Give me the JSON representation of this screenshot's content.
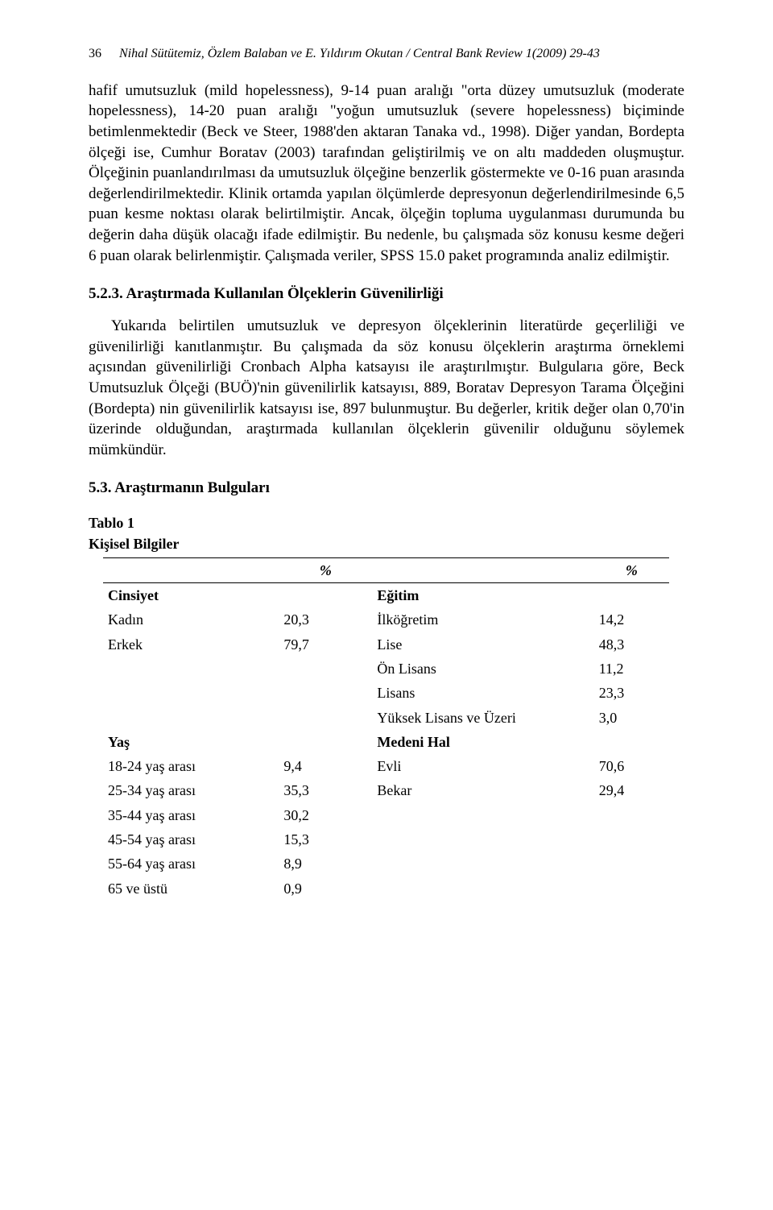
{
  "header": {
    "page_number": "36",
    "authors_line": "Nihal Sütütemiz, Özlem Balaban ve E. Yıldırım Okutan / Central Bank Review 1(2009) 29-43"
  },
  "paragraphs": {
    "p1": "hafif umutsuzluk (mild hopelessness), 9-14 puan aralığı \"orta düzey umutsuzluk (moderate hopelessness), 14-20 puan aralığı \"yoğun umutsuzluk (severe hopelessness) biçiminde betimlenmektedir (Beck ve Steer, 1988'den aktaran Tanaka vd., 1998). Diğer yandan, Bordepta ölçeği ise, Cumhur Boratav (2003) tarafından geliştirilmiş ve on altı maddeden oluşmuştur. Ölçeğinin puanlandırılması da umutsuzluk ölçeğine benzerlik göstermekte ve 0-16 puan arasında değerlendirilmektedir. Klinik ortamda yapılan ölçümlerde depresyonun değerlendirilmesinde 6,5 puan kesme noktası olarak belirtilmiştir. Ancak, ölçeğin topluma uygulanması durumunda bu değerin daha düşük olacağı ifade edilmiştir. Bu nedenle, bu çalışmada söz konusu kesme değeri 6 puan olarak belirlenmiştir. Çalışmada veriler, SPSS 15.0 paket programında analiz edilmiştir.",
    "h523": "5.2.3. Araştırmada Kullanılan Ölçeklerin Güvenilirliği",
    "p2": "Yukarıda belirtilen umutsuzluk ve depresyon ölçeklerinin literatürde geçerliliği ve güvenilirliği kanıtlanmıştır. Bu çalışmada da söz konusu ölçeklerin araştırma örneklemi açısından güvenilirliği Cronbach Alpha katsayısı ile araştırılmıştır. Bulgularıa göre, Beck Umutsuzluk Ölçeği (BUÖ)'nin güvenilirlik katsayısı, 889, Boratav Depresyon Tarama Ölçeğini (Bordepta) nin güvenilirlik katsayısı ise, 897 bulunmuştur. Bu değerler, kritik değer olan 0,70'in üzerinde olduğundan, araştırmada kullanılan ölçeklerin güvenilir olduğunu söylemek mümkündür.",
    "h53": "5.3. Araştırmanın Bulguları"
  },
  "table": {
    "caption": "Tablo 1",
    "subcaption": "Kişisel Bilgiler",
    "pct_symbol": "%",
    "left": {
      "group1": {
        "label": "Cinsiyet",
        "rows": [
          {
            "label": "Kadın",
            "value": "20,3"
          },
          {
            "label": "Erkek",
            "value": "79,7"
          }
        ]
      },
      "group2": {
        "label": "Yaş",
        "rows": [
          {
            "label": "18-24 yaş arası",
            "value": "9,4"
          },
          {
            "label": "25-34 yaş arası",
            "value": "35,3"
          },
          {
            "label": "35-44 yaş arası",
            "value": "30,2"
          },
          {
            "label": "45-54 yaş arası",
            "value": "15,3"
          },
          {
            "label": "55-64 yaş arası",
            "value": "8,9"
          },
          {
            "label": "65 ve üstü",
            "value": "0,9"
          }
        ]
      }
    },
    "right": {
      "group1": {
        "label": "Eğitim",
        "rows": [
          {
            "label": "İlköğretim",
            "value": "14,2"
          },
          {
            "label": "Lise",
            "value": "48,3"
          },
          {
            "label": "Ön Lisans",
            "value": "11,2"
          },
          {
            "label": "Lisans",
            "value": "23,3"
          },
          {
            "label": "Yüksek Lisans ve Üzeri",
            "value": "3,0"
          }
        ]
      },
      "group2": {
        "label": "Medeni Hal",
        "rows": [
          {
            "label": "Evli",
            "value": "70,6"
          },
          {
            "label": "Bekar",
            "value": "29,4"
          }
        ]
      }
    }
  }
}
